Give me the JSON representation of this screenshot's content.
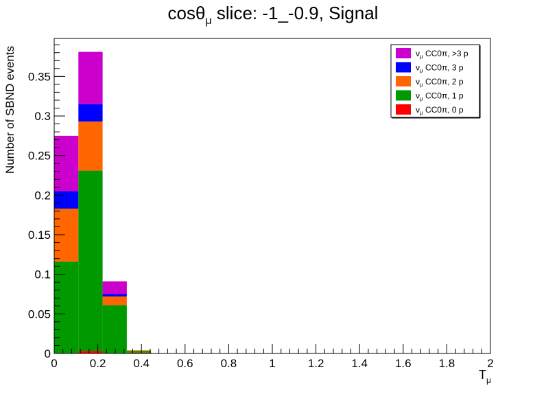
{
  "chart_data": {
    "type": "bar",
    "stacked": true,
    "title": "cosθ slice: -1_-0.9, Signal",
    "title_main": "cosθ",
    "title_sub": "μ",
    "title_rest": " slice: -1_-0.9, Signal",
    "xlabel_main": "T",
    "xlabel_sub": "μ",
    "ylabel": "Number of SBND events",
    "xlim": [
      0,
      2
    ],
    "ylim": [
      0,
      0.398
    ],
    "x_ticks": [
      "0",
      "0.2",
      "0.4",
      "0.6",
      "0.8",
      "1",
      "1.2",
      "1.4",
      "1.6",
      "1.8",
      "2"
    ],
    "y_ticks": [
      "0",
      "0.05",
      "0.1",
      "0.15",
      "0.2",
      "0.25",
      "0.3",
      "0.35"
    ],
    "bins": [
      [
        0,
        0.111
      ],
      [
        0.111,
        0.222
      ],
      [
        0.222,
        0.333
      ],
      [
        0.333,
        0.444
      ]
    ],
    "series": [
      {
        "name": "0 p",
        "color": "#ff0000",
        "values": [
          0.0,
          0.003,
          0.0,
          0.001
        ]
      },
      {
        "name": "1 p",
        "color": "#009900",
        "values": [
          0.116,
          0.228,
          0.061,
          0.002
        ]
      },
      {
        "name": "2 p",
        "color": "#ff6600",
        "values": [
          0.067,
          0.062,
          0.011,
          0.001
        ]
      },
      {
        "name": "3 p",
        "color": "#0000ff",
        "values": [
          0.022,
          0.022,
          0.003,
          0.0
        ]
      },
      {
        "name": ">3 p",
        "color": "#cc00cc",
        "values": [
          0.07,
          0.066,
          0.016,
          0.0
        ]
      }
    ],
    "legend": {
      "placement": "top-right",
      "nu": "ν",
      "nu_sub": "μ",
      "prefix": " CC0π, ",
      "entries": [
        {
          "label": ">3 p",
          "color": "#cc00cc"
        },
        {
          "label": "3 p",
          "color": "#0000ff"
        },
        {
          "label": "2 p",
          "color": "#ff6600"
        },
        {
          "label": "1 p",
          "color": "#009900"
        },
        {
          "label": "0 p",
          "color": "#ff0000"
        }
      ]
    }
  }
}
